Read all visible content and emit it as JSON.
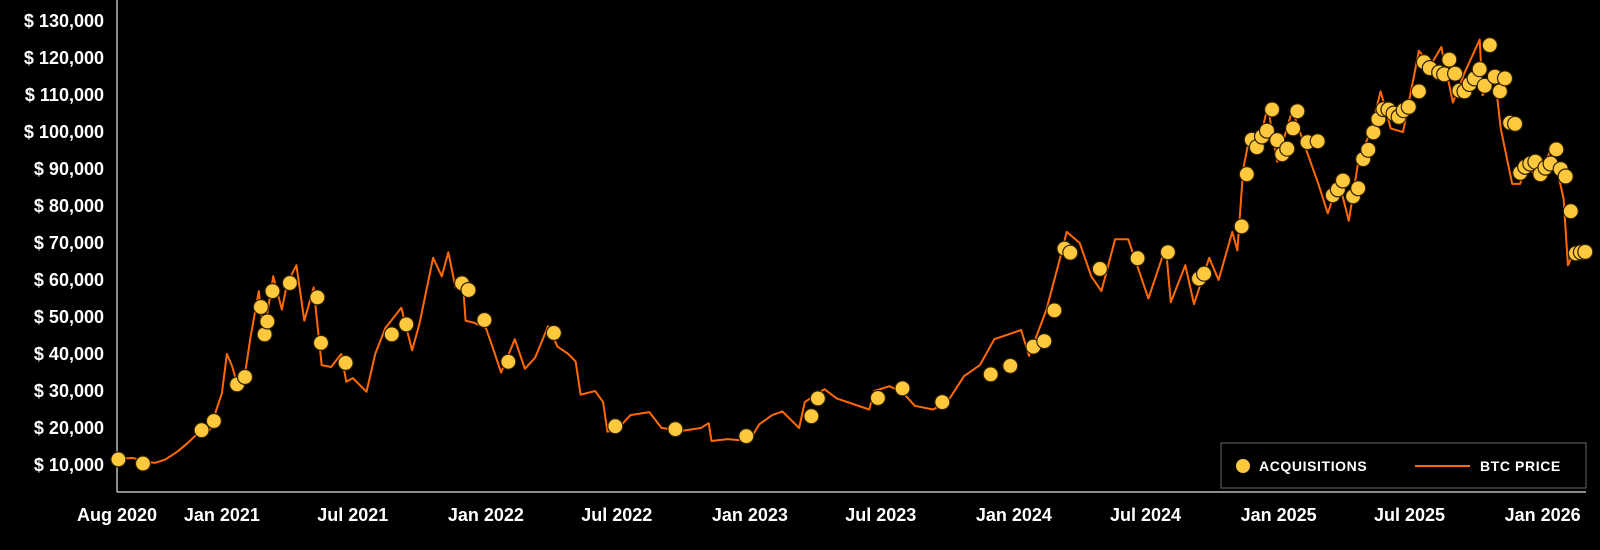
{
  "chart_data": {
    "type": "line",
    "title": "",
    "xlabel": "",
    "ylabel": "",
    "xlim": [
      "2020-08-09",
      "2026-03-02"
    ],
    "ylim": [
      2700,
      135700
    ],
    "grid": false,
    "legend_placement": "bottom-right",
    "colors": {
      "background": "#000000",
      "price_line": "#ff6a00",
      "acquisition_dot": "#ffc83d",
      "axis": "#bbbbbb",
      "text": "#ffffff"
    },
    "y_ticks": [
      {
        "value": 10000,
        "label": "$ 10,000"
      },
      {
        "value": 20000,
        "label": "$ 20,000"
      },
      {
        "value": 30000,
        "label": "$ 30,000"
      },
      {
        "value": 40000,
        "label": "$ 40,000"
      },
      {
        "value": 50000,
        "label": "$ 50,000"
      },
      {
        "value": 60000,
        "label": "$ 60,000"
      },
      {
        "value": 70000,
        "label": "$ 70,000"
      },
      {
        "value": 80000,
        "label": "$ 80,000"
      },
      {
        "value": 90000,
        "label": "$ 90,000"
      },
      {
        "value": 100000,
        "label": "$ 100,000"
      },
      {
        "value": 110000,
        "label": "$ 110,000"
      },
      {
        "value": 120000,
        "label": "$ 120,000"
      },
      {
        "value": 130000,
        "label": "$ 130,000"
      }
    ],
    "x_ticks": [
      {
        "date": "2020-08-09",
        "label": "Aug 2020"
      },
      {
        "date": "2021-01-01",
        "label": "Jan 2021"
      },
      {
        "date": "2021-07-01",
        "label": "Jul 2021"
      },
      {
        "date": "2022-01-01",
        "label": "Jan 2022"
      },
      {
        "date": "2022-07-01",
        "label": "Jul 2022"
      },
      {
        "date": "2023-01-01",
        "label": "Jan 2023"
      },
      {
        "date": "2023-07-01",
        "label": "Jul 2023"
      },
      {
        "date": "2024-01-01",
        "label": "Jan 2024"
      },
      {
        "date": "2024-07-01",
        "label": "Jul 2024"
      },
      {
        "date": "2025-01-01",
        "label": "Jan 2025"
      },
      {
        "date": "2025-07-01",
        "label": "Jul 2025"
      },
      {
        "date": "2026-01-01",
        "label": "Jan 2026"
      }
    ],
    "legend": [
      {
        "label": "ACQUISITIONS",
        "marker": "dot"
      },
      {
        "label": "BTC PRICE",
        "marker": "line"
      }
    ],
    "series": [
      {
        "name": "BTC PRICE",
        "kind": "line",
        "points": [
          [
            "2020-08-09",
            11700
          ],
          [
            "2020-08-20",
            11800
          ],
          [
            "2020-09-01",
            11900
          ],
          [
            "2020-09-15",
            10800
          ],
          [
            "2020-10-01",
            10600
          ],
          [
            "2020-10-15",
            11500
          ],
          [
            "2020-11-01",
            13700
          ],
          [
            "2020-11-15",
            16000
          ],
          [
            "2020-12-01",
            19000
          ],
          [
            "2020-12-15",
            19400
          ],
          [
            "2021-01-01",
            29400
          ],
          [
            "2021-01-08",
            40000
          ],
          [
            "2021-01-15",
            36800
          ],
          [
            "2021-01-22",
            32000
          ],
          [
            "2021-02-01",
            33500
          ],
          [
            "2021-02-10",
            45000
          ],
          [
            "2021-02-21",
            57000
          ],
          [
            "2021-02-28",
            45000
          ],
          [
            "2021-03-13",
            61000
          ],
          [
            "2021-03-25",
            52000
          ],
          [
            "2021-04-01",
            59000
          ],
          [
            "2021-04-14",
            64000
          ],
          [
            "2021-04-25",
            49000
          ],
          [
            "2021-05-08",
            58000
          ],
          [
            "2021-05-12",
            50000
          ],
          [
            "2021-05-19",
            37000
          ],
          [
            "2021-06-01",
            36500
          ],
          [
            "2021-06-15",
            40000
          ],
          [
            "2021-06-22",
            32500
          ],
          [
            "2021-07-01",
            33500
          ],
          [
            "2021-07-20",
            29800
          ],
          [
            "2021-08-01",
            40000
          ],
          [
            "2021-08-15",
            47000
          ],
          [
            "2021-09-06",
            52500
          ],
          [
            "2021-09-21",
            41000
          ],
          [
            "2021-10-01",
            48000
          ],
          [
            "2021-10-20",
            66000
          ],
          [
            "2021-11-01",
            61000
          ],
          [
            "2021-11-10",
            67500
          ],
          [
            "2021-11-20",
            58000
          ],
          [
            "2021-12-01",
            57000
          ],
          [
            "2021-12-04",
            49000
          ],
          [
            "2021-12-15",
            48500
          ],
          [
            "2022-01-01",
            47000
          ],
          [
            "2022-01-10",
            42000
          ],
          [
            "2022-01-22",
            35000
          ],
          [
            "2022-02-10",
            44000
          ],
          [
            "2022-02-24",
            36000
          ],
          [
            "2022-03-10",
            39000
          ],
          [
            "2022-03-28",
            47500
          ],
          [
            "2022-04-10",
            42000
          ],
          [
            "2022-04-25",
            40000
          ],
          [
            "2022-05-05",
            38000
          ],
          [
            "2022-05-12",
            29000
          ],
          [
            "2022-06-01",
            30000
          ],
          [
            "2022-06-12",
            27000
          ],
          [
            "2022-06-18",
            19000
          ],
          [
            "2022-07-01",
            19500
          ],
          [
            "2022-07-20",
            23500
          ],
          [
            "2022-08-15",
            24300
          ],
          [
            "2022-09-01",
            20000
          ],
          [
            "2022-09-15",
            19700
          ],
          [
            "2022-10-01",
            19300
          ],
          [
            "2022-10-25",
            20000
          ],
          [
            "2022-11-05",
            21300
          ],
          [
            "2022-11-09",
            16500
          ],
          [
            "2022-12-01",
            17000
          ],
          [
            "2022-12-31",
            16500
          ],
          [
            "2023-01-14",
            21000
          ],
          [
            "2023-02-01",
            23500
          ],
          [
            "2023-02-15",
            24500
          ],
          [
            "2023-03-10",
            20000
          ],
          [
            "2023-03-18",
            27000
          ],
          [
            "2023-04-14",
            30500
          ],
          [
            "2023-05-01",
            28000
          ],
          [
            "2023-06-15",
            25000
          ],
          [
            "2023-06-22",
            30000
          ],
          [
            "2023-07-13",
            31300
          ],
          [
            "2023-08-01",
            29500
          ],
          [
            "2023-08-17",
            26000
          ],
          [
            "2023-09-11",
            25000
          ],
          [
            "2023-10-01",
            27000
          ],
          [
            "2023-10-24",
            34000
          ],
          [
            "2023-11-15",
            37000
          ],
          [
            "2023-12-05",
            44000
          ],
          [
            "2024-01-11",
            46500
          ],
          [
            "2024-01-22",
            39500
          ],
          [
            "2024-02-15",
            52000
          ],
          [
            "2024-03-05",
            66000
          ],
          [
            "2024-03-14",
            73000
          ],
          [
            "2024-04-01",
            70000
          ],
          [
            "2024-04-17",
            61000
          ],
          [
            "2024-05-01",
            57000
          ],
          [
            "2024-05-20",
            71000
          ],
          [
            "2024-06-07",
            71000
          ],
          [
            "2024-07-05",
            55000
          ],
          [
            "2024-07-29",
            69000
          ],
          [
            "2024-08-05",
            54000
          ],
          [
            "2024-08-25",
            64000
          ],
          [
            "2024-09-06",
            53500
          ],
          [
            "2024-09-27",
            66000
          ],
          [
            "2024-10-10",
            60000
          ],
          [
            "2024-10-29",
            73000
          ],
          [
            "2024-11-05",
            68000
          ],
          [
            "2024-11-13",
            90000
          ],
          [
            "2024-11-22",
            99000
          ],
          [
            "2024-12-05",
            97000
          ],
          [
            "2024-12-17",
            107000
          ],
          [
            "2024-12-30",
            92000
          ],
          [
            "2025-01-20",
            106000
          ],
          [
            "2025-02-03",
            98000
          ],
          [
            "2025-02-25",
            86000
          ],
          [
            "2025-03-10",
            78000
          ],
          [
            "2025-03-25",
            87000
          ],
          [
            "2025-04-08",
            76000
          ],
          [
            "2025-04-22",
            93000
          ],
          [
            "2025-05-08",
            100000
          ],
          [
            "2025-05-22",
            111000
          ],
          [
            "2025-06-05",
            101000
          ],
          [
            "2025-06-22",
            100000
          ],
          [
            "2025-07-14",
            122000
          ],
          [
            "2025-07-30",
            118000
          ],
          [
            "2025-08-14",
            123000
          ],
          [
            "2025-08-30",
            108000
          ],
          [
            "2025-09-15",
            116000
          ],
          [
            "2025-10-06",
            125000
          ],
          [
            "2025-10-10",
            110000
          ],
          [
            "2025-10-27",
            115000
          ],
          [
            "2025-11-04",
            101000
          ],
          [
            "2025-11-20",
            86000
          ],
          [
            "2025-12-01",
            86000
          ],
          [
            "2025-12-10",
            92000
          ],
          [
            "2025-12-25",
            87000
          ],
          [
            "2026-01-14",
            96000
          ],
          [
            "2026-01-30",
            82000
          ],
          [
            "2026-02-05",
            64000
          ],
          [
            "2026-02-15",
            68500
          ],
          [
            "2026-02-28",
            67000
          ]
        ]
      },
      {
        "name": "ACQUISITIONS",
        "kind": "scatter",
        "points": [
          [
            "2020-08-11",
            11500
          ],
          [
            "2020-09-14",
            10400
          ],
          [
            "2020-12-04",
            19400
          ],
          [
            "2020-12-21",
            21900
          ],
          [
            "2021-01-22",
            31800
          ],
          [
            "2021-02-02",
            33800
          ],
          [
            "2021-02-24",
            52700
          ],
          [
            "2021-03-01",
            45300
          ],
          [
            "2021-03-05",
            48800
          ],
          [
            "2021-03-12",
            57000
          ],
          [
            "2021-04-05",
            59200
          ],
          [
            "2021-05-13",
            55300
          ],
          [
            "2021-05-18",
            43000
          ],
          [
            "2021-06-21",
            37600
          ],
          [
            "2021-08-24",
            45300
          ],
          [
            "2021-09-13",
            48000
          ],
          [
            "2021-11-29",
            59100
          ],
          [
            "2021-12-08",
            57300
          ],
          [
            "2021-12-30",
            49200
          ],
          [
            "2022-02-01",
            37900
          ],
          [
            "2022-04-05",
            45700
          ],
          [
            "2022-06-29",
            20500
          ],
          [
            "2022-09-20",
            19700
          ],
          [
            "2022-12-27",
            17800
          ],
          [
            "2023-03-27",
            23200
          ],
          [
            "2023-04-05",
            28000
          ],
          [
            "2023-06-27",
            28100
          ],
          [
            "2023-07-31",
            30700
          ],
          [
            "2023-09-24",
            27000
          ],
          [
            "2023-11-30",
            34500
          ],
          [
            "2023-12-27",
            36800
          ],
          [
            "2024-01-28",
            42000
          ],
          [
            "2024-02-12",
            43500
          ],
          [
            "2024-02-26",
            51800
          ],
          [
            "2024-03-11",
            68500
          ],
          [
            "2024-03-19",
            67400
          ],
          [
            "2024-04-29",
            63000
          ],
          [
            "2024-06-20",
            65900
          ],
          [
            "2024-08-01",
            67500
          ],
          [
            "2024-09-13",
            60400
          ],
          [
            "2024-09-20",
            61700
          ],
          [
            "2024-11-11",
            74500
          ],
          [
            "2024-11-18",
            88600
          ],
          [
            "2024-11-25",
            97900
          ],
          [
            "2024-12-02",
            95900
          ],
          [
            "2024-12-09",
            98800
          ],
          [
            "2024-12-16",
            100400
          ],
          [
            "2024-12-23",
            106100
          ],
          [
            "2024-12-30",
            97800
          ],
          [
            "2025-01-06",
            94000
          ],
          [
            "2025-01-13",
            95500
          ],
          [
            "2025-01-21",
            101000
          ],
          [
            "2025-01-27",
            105600
          ],
          [
            "2025-02-10",
            97300
          ],
          [
            "2025-02-24",
            97500
          ],
          [
            "2025-03-17",
            82900
          ],
          [
            "2025-03-24",
            84500
          ],
          [
            "2025-03-31",
            86900
          ],
          [
            "2025-04-14",
            82600
          ],
          [
            "2025-04-21",
            84800
          ],
          [
            "2025-04-28",
            92700
          ],
          [
            "2025-05-05",
            95200
          ],
          [
            "2025-05-12",
            99900
          ],
          [
            "2025-05-19",
            103500
          ],
          [
            "2025-05-26",
            106200
          ],
          [
            "2025-06-02",
            106100
          ],
          [
            "2025-06-09",
            105000
          ],
          [
            "2025-06-16",
            104100
          ],
          [
            "2025-06-23",
            105900
          ],
          [
            "2025-06-30",
            106800
          ],
          [
            "2025-07-14",
            111000
          ],
          [
            "2025-07-21",
            118900
          ],
          [
            "2025-07-29",
            117300
          ],
          [
            "2025-08-11",
            116100
          ],
          [
            "2025-08-18",
            115600
          ],
          [
            "2025-08-25",
            119600
          ],
          [
            "2025-09-02",
            115800
          ],
          [
            "2025-09-08",
            111200
          ],
          [
            "2025-09-15",
            111000
          ],
          [
            "2025-09-22",
            113000
          ],
          [
            "2025-09-29",
            114500
          ],
          [
            "2025-10-06",
            117000
          ],
          [
            "2025-10-13",
            112500
          ],
          [
            "2025-10-20",
            123500
          ],
          [
            "2025-10-27",
            115000
          ],
          [
            "2025-11-03",
            111000
          ],
          [
            "2025-11-10",
            114500
          ],
          [
            "2025-11-17",
            102500
          ],
          [
            "2025-11-24",
            102200
          ],
          [
            "2025-12-01",
            89000
          ],
          [
            "2025-12-08",
            90600
          ],
          [
            "2025-12-15",
            91500
          ],
          [
            "2025-12-22",
            92000
          ],
          [
            "2025-12-29",
            88600
          ],
          [
            "2026-01-05",
            90400
          ],
          [
            "2026-01-12",
            91500
          ],
          [
            "2026-01-20",
            95300
          ],
          [
            "2026-01-26",
            90000
          ],
          [
            "2026-02-02",
            88000
          ],
          [
            "2026-02-09",
            78600
          ],
          [
            "2026-02-16",
            67200
          ],
          [
            "2026-02-23",
            67500
          ],
          [
            "2026-03-01",
            67600
          ]
        ]
      }
    ]
  }
}
